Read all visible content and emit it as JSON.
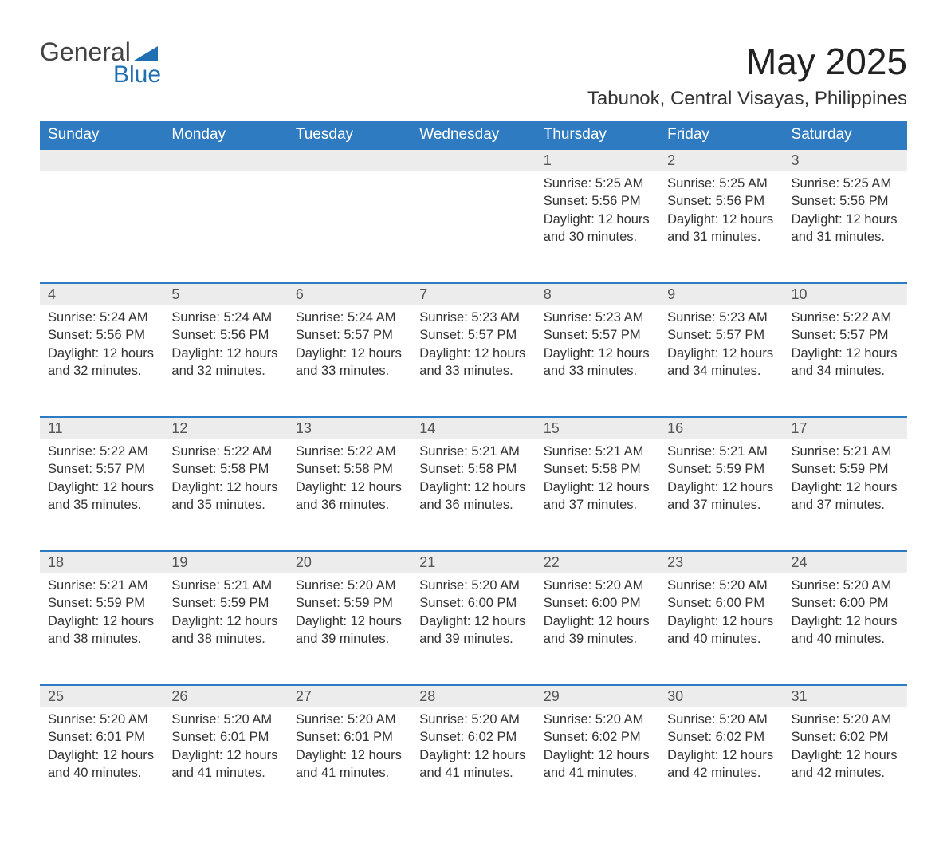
{
  "brand": {
    "line1": "General",
    "line2": "Blue",
    "triangle_color": "#1f6fb2"
  },
  "title": "May 2025",
  "location": "Tabunok, Central Visayas, Philippines",
  "colors": {
    "header_bg": "#2f7bc1",
    "header_text": "#ffffff",
    "daynum_bg": "#ececec",
    "daynum_text": "#555555",
    "body_text": "#333333",
    "rule": "#2f7bc1",
    "page_bg": "#ffffff"
  },
  "fonts": {
    "title_size_pt": 34,
    "location_size_pt": 18,
    "header_size_pt": 14,
    "body_size_pt": 12
  },
  "weekdays": [
    "Sunday",
    "Monday",
    "Tuesday",
    "Wednesday",
    "Thursday",
    "Friday",
    "Saturday"
  ],
  "weeks": [
    [
      null,
      null,
      null,
      null,
      {
        "n": "1",
        "sunrise": "5:25 AM",
        "sunset": "5:56 PM",
        "daylight": "12 hours and 30 minutes."
      },
      {
        "n": "2",
        "sunrise": "5:25 AM",
        "sunset": "5:56 PM",
        "daylight": "12 hours and 31 minutes."
      },
      {
        "n": "3",
        "sunrise": "5:25 AM",
        "sunset": "5:56 PM",
        "daylight": "12 hours and 31 minutes."
      }
    ],
    [
      {
        "n": "4",
        "sunrise": "5:24 AM",
        "sunset": "5:56 PM",
        "daylight": "12 hours and 32 minutes."
      },
      {
        "n": "5",
        "sunrise": "5:24 AM",
        "sunset": "5:56 PM",
        "daylight": "12 hours and 32 minutes."
      },
      {
        "n": "6",
        "sunrise": "5:24 AM",
        "sunset": "5:57 PM",
        "daylight": "12 hours and 33 minutes."
      },
      {
        "n": "7",
        "sunrise": "5:23 AM",
        "sunset": "5:57 PM",
        "daylight": "12 hours and 33 minutes."
      },
      {
        "n": "8",
        "sunrise": "5:23 AM",
        "sunset": "5:57 PM",
        "daylight": "12 hours and 33 minutes."
      },
      {
        "n": "9",
        "sunrise": "5:23 AM",
        "sunset": "5:57 PM",
        "daylight": "12 hours and 34 minutes."
      },
      {
        "n": "10",
        "sunrise": "5:22 AM",
        "sunset": "5:57 PM",
        "daylight": "12 hours and 34 minutes."
      }
    ],
    [
      {
        "n": "11",
        "sunrise": "5:22 AM",
        "sunset": "5:57 PM",
        "daylight": "12 hours and 35 minutes."
      },
      {
        "n": "12",
        "sunrise": "5:22 AM",
        "sunset": "5:58 PM",
        "daylight": "12 hours and 35 minutes."
      },
      {
        "n": "13",
        "sunrise": "5:22 AM",
        "sunset": "5:58 PM",
        "daylight": "12 hours and 36 minutes."
      },
      {
        "n": "14",
        "sunrise": "5:21 AM",
        "sunset": "5:58 PM",
        "daylight": "12 hours and 36 minutes."
      },
      {
        "n": "15",
        "sunrise": "5:21 AM",
        "sunset": "5:58 PM",
        "daylight": "12 hours and 37 minutes."
      },
      {
        "n": "16",
        "sunrise": "5:21 AM",
        "sunset": "5:59 PM",
        "daylight": "12 hours and 37 minutes."
      },
      {
        "n": "17",
        "sunrise": "5:21 AM",
        "sunset": "5:59 PM",
        "daylight": "12 hours and 37 minutes."
      }
    ],
    [
      {
        "n": "18",
        "sunrise": "5:21 AM",
        "sunset": "5:59 PM",
        "daylight": "12 hours and 38 minutes."
      },
      {
        "n": "19",
        "sunrise": "5:21 AM",
        "sunset": "5:59 PM",
        "daylight": "12 hours and 38 minutes."
      },
      {
        "n": "20",
        "sunrise": "5:20 AM",
        "sunset": "5:59 PM",
        "daylight": "12 hours and 39 minutes."
      },
      {
        "n": "21",
        "sunrise": "5:20 AM",
        "sunset": "6:00 PM",
        "daylight": "12 hours and 39 minutes."
      },
      {
        "n": "22",
        "sunrise": "5:20 AM",
        "sunset": "6:00 PM",
        "daylight": "12 hours and 39 minutes."
      },
      {
        "n": "23",
        "sunrise": "5:20 AM",
        "sunset": "6:00 PM",
        "daylight": "12 hours and 40 minutes."
      },
      {
        "n": "24",
        "sunrise": "5:20 AM",
        "sunset": "6:00 PM",
        "daylight": "12 hours and 40 minutes."
      }
    ],
    [
      {
        "n": "25",
        "sunrise": "5:20 AM",
        "sunset": "6:01 PM",
        "daylight": "12 hours and 40 minutes."
      },
      {
        "n": "26",
        "sunrise": "5:20 AM",
        "sunset": "6:01 PM",
        "daylight": "12 hours and 41 minutes."
      },
      {
        "n": "27",
        "sunrise": "5:20 AM",
        "sunset": "6:01 PM",
        "daylight": "12 hours and 41 minutes."
      },
      {
        "n": "28",
        "sunrise": "5:20 AM",
        "sunset": "6:02 PM",
        "daylight": "12 hours and 41 minutes."
      },
      {
        "n": "29",
        "sunrise": "5:20 AM",
        "sunset": "6:02 PM",
        "daylight": "12 hours and 41 minutes."
      },
      {
        "n": "30",
        "sunrise": "5:20 AM",
        "sunset": "6:02 PM",
        "daylight": "12 hours and 42 minutes."
      },
      {
        "n": "31",
        "sunrise": "5:20 AM",
        "sunset": "6:02 PM",
        "daylight": "12 hours and 42 minutes."
      }
    ]
  ],
  "labels": {
    "sunrise": "Sunrise: ",
    "sunset": "Sunset: ",
    "daylight": "Daylight: "
  }
}
